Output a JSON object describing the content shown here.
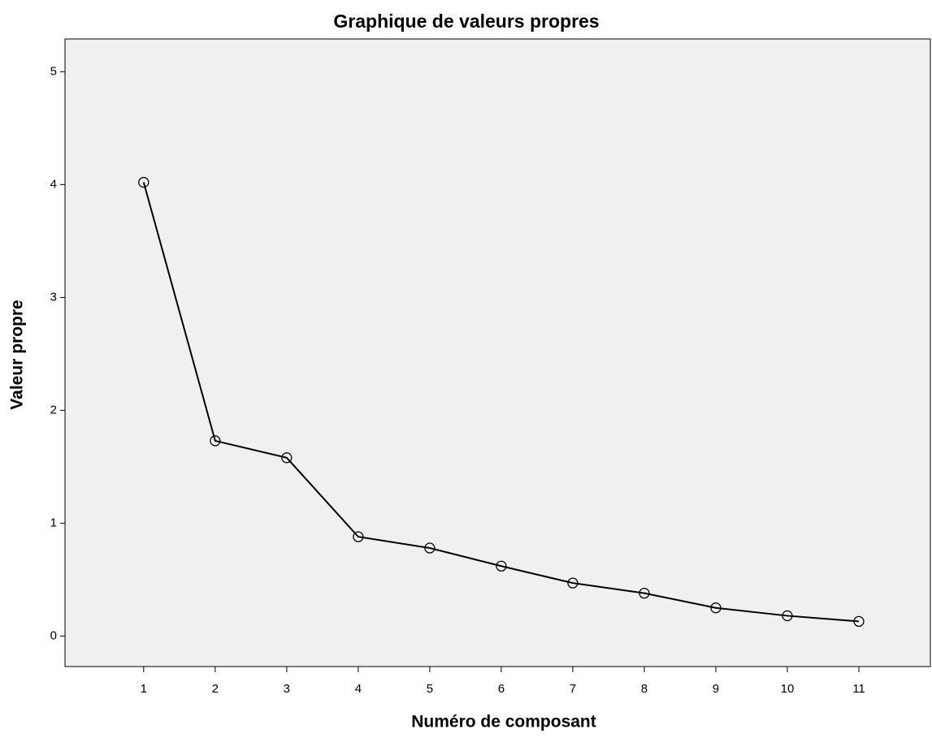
{
  "chart_data": {
    "type": "line",
    "title": "Graphique de valeurs propres",
    "x_label": "Numéro de composant",
    "y_label": "Valeur propre",
    "x": [
      1,
      2,
      3,
      4,
      5,
      6,
      7,
      8,
      9,
      10,
      11
    ],
    "series": [
      {
        "name": "Valeur propre",
        "color": "#000000",
        "values": [
          4.02,
          1.73,
          1.58,
          0.88,
          0.78,
          0.62,
          0.47,
          0.38,
          0.25,
          0.18,
          0.13
        ]
      }
    ],
    "xlim": [
      -0.1,
      12.0
    ],
    "xticks": [
      1,
      2,
      3,
      4,
      5,
      6,
      7,
      8,
      9,
      10,
      11
    ],
    "ylim": [
      -0.27,
      5.29
    ],
    "yticks": [
      0,
      1,
      2,
      3,
      4,
      5
    ],
    "background": "#f0f0f0",
    "grid": false,
    "markers": true
  }
}
